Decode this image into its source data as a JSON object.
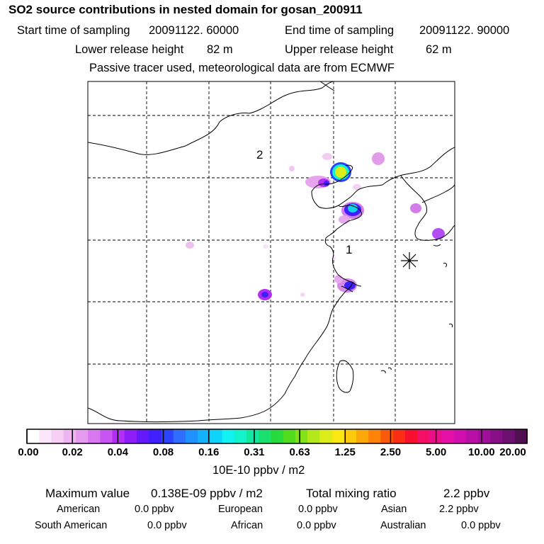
{
  "header": {
    "title": "SO2 source contributions in nested domain for gosan_200911",
    "start_label": "Start time of sampling",
    "start_value": "20091122. 60000",
    "end_label": "End time of sampling",
    "end_value": "20091122. 90000",
    "lower_label": "Lower release height",
    "lower_value": "82 m",
    "upper_label": "Upper release height",
    "upper_value": "62 m",
    "note": "Passive tracer used, meteorological data are from ECMWF"
  },
  "map": {
    "labels": [
      "1",
      "2"
    ],
    "receptor_marker": "star-icon"
  },
  "legend": {
    "colors": [
      "#ffffff",
      "#fbe6fb",
      "#f5cdf5",
      "#efb4f2",
      "#e59bef",
      "#d877f0",
      "#c854f2",
      "#b32ef6",
      "#8f1df8",
      "#6419fb",
      "#3f1ffd",
      "#2b43fe",
      "#2f6dfe",
      "#1d91fe",
      "#13b2fd",
      "#10d3fc",
      "#12f2f2",
      "#12f2cb",
      "#12e89f",
      "#1ae06f",
      "#27da3c",
      "#50dc1d",
      "#82e21a",
      "#b5e81a",
      "#dcec18",
      "#fbe812",
      "#fcc90c",
      "#fca70a",
      "#fc8209",
      "#fc5a0b",
      "#fa2e12",
      "#f80f2d",
      "#f20f64",
      "#ec0f8c",
      "#e30fa6",
      "#d00fae",
      "#b80fa6",
      "#9f0f97",
      "#870f87",
      "#6c0f6f",
      "#4f0f52"
    ],
    "ticks": [
      "0.00",
      "0.02",
      "0.04",
      "0.08",
      "0.16",
      "0.31",
      "0.63",
      "1.25",
      "2.50",
      "5.00",
      "10.00",
      "20.00"
    ],
    "unit": "10E-10 ppbv / m2"
  },
  "summary": {
    "max_label": "Maximum value",
    "max_value": "0.138E-09 ppbv / m2",
    "total_label": "Total mixing ratio",
    "total_value": "2.2 ppbv"
  },
  "regions": [
    {
      "name": "American",
      "value": "0.0 ppbv"
    },
    {
      "name": "European",
      "value": "0.0 ppbv"
    },
    {
      "name": "Asian",
      "value": "2.2 ppbv"
    },
    {
      "name": "South American",
      "value": "0.0 ppbv"
    },
    {
      "name": "African",
      "value": "0.0 ppbv"
    },
    {
      "name": "Australian",
      "value": "0.0 ppbv"
    }
  ]
}
